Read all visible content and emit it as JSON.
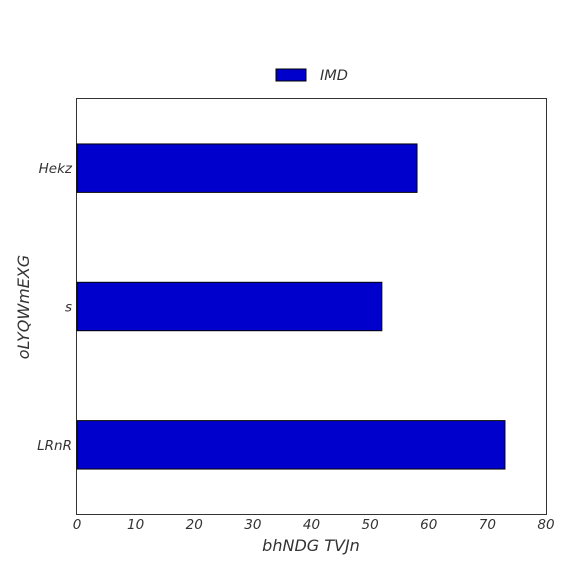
{
  "chart_data": {
    "type": "bar",
    "orientation": "horizontal",
    "categories": [
      "Hekz",
      "s",
      "LRnR"
    ],
    "series": [
      {
        "name": "IMD",
        "values": [
          58,
          52,
          73
        ]
      }
    ],
    "xlabel": "bhNDG TVJn",
    "ylabel": "oLYQWmEXG",
    "xlim": [
      0,
      80
    ],
    "xticks": [
      0,
      10,
      20,
      30,
      40,
      50,
      60,
      70,
      80
    ],
    "grid": false,
    "legend_position": "top-center",
    "colors": {
      "bar": "#0000cc",
      "edge": "#000000"
    }
  }
}
